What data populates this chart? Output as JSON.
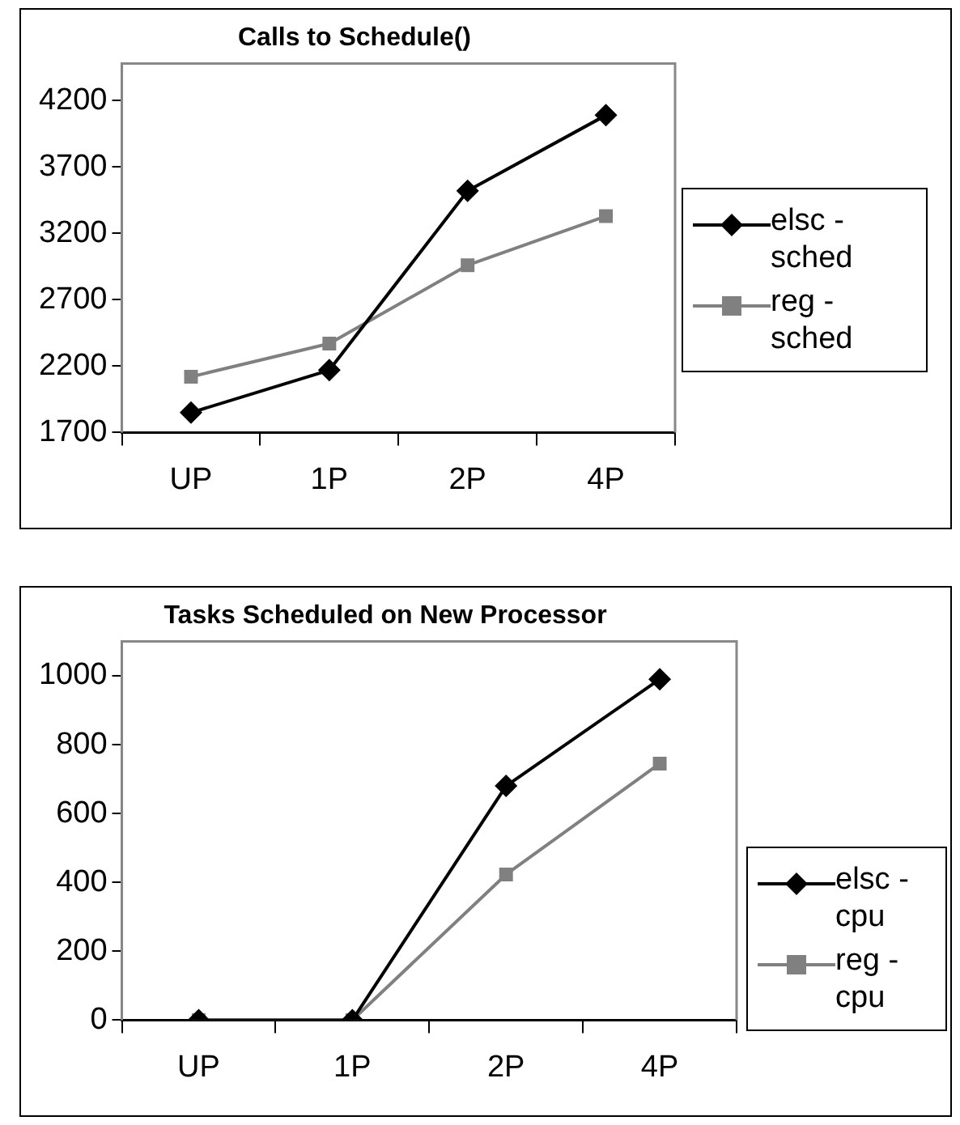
{
  "chart_data": [
    {
      "type": "line",
      "title": "Calls to Schedule()",
      "categories": [
        "UP",
        "1P",
        "2P",
        "4P"
      ],
      "series": [
        {
          "name": "elsc - sched",
          "color": "#000000",
          "marker": "diamond",
          "values": [
            1850,
            2170,
            3520,
            4090
          ]
        },
        {
          "name": "reg - sched",
          "color": "#808080",
          "marker": "square",
          "values": [
            2120,
            2370,
            2960,
            3330
          ]
        }
      ],
      "ylim": [
        1700,
        4480
      ],
      "yticks": [
        1700,
        2200,
        2700,
        3200,
        3700,
        4200
      ],
      "grid": false,
      "legend": "right",
      "line_style": "solid"
    },
    {
      "type": "line",
      "title": "Tasks Scheduled on New Processor",
      "categories": [
        "UP",
        "1P",
        "2P",
        "4P"
      ],
      "series": [
        {
          "name": "elsc - cpu",
          "color": "#000000",
          "marker": "diamond",
          "values": [
            0,
            0,
            680,
            990
          ]
        },
        {
          "name": "reg - cpu",
          "color": "#808080",
          "marker": "square",
          "values": [
            0,
            0,
            423,
            745
          ]
        }
      ],
      "ylim": [
        0,
        1100
      ],
      "yticks": [
        0,
        200,
        400,
        600,
        800,
        1000
      ],
      "grid": false,
      "legend": "right",
      "line_style": "solid"
    }
  ]
}
